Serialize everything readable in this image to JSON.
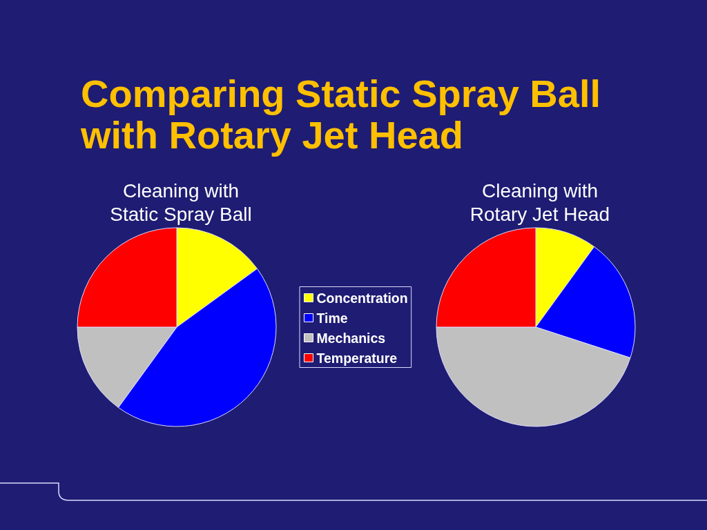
{
  "chart_data": {
    "type": "pie",
    "title": "Comparing Static Spray Ball with Rotary Jet Head",
    "categories": [
      "Concentration",
      "Time",
      "Mechanics",
      "Temperature"
    ],
    "colors": [
      "#ffff00",
      "#0000ff",
      "#c0c0c0",
      "#ff0000"
    ],
    "series": [
      {
        "name": "Cleaning with Static Spray Ball",
        "values": [
          15,
          45,
          15,
          25
        ]
      },
      {
        "name": "Cleaning with Rotary Jet Head",
        "values": [
          10,
          20,
          45,
          25
        ]
      }
    ],
    "legend": "center"
  }
}
